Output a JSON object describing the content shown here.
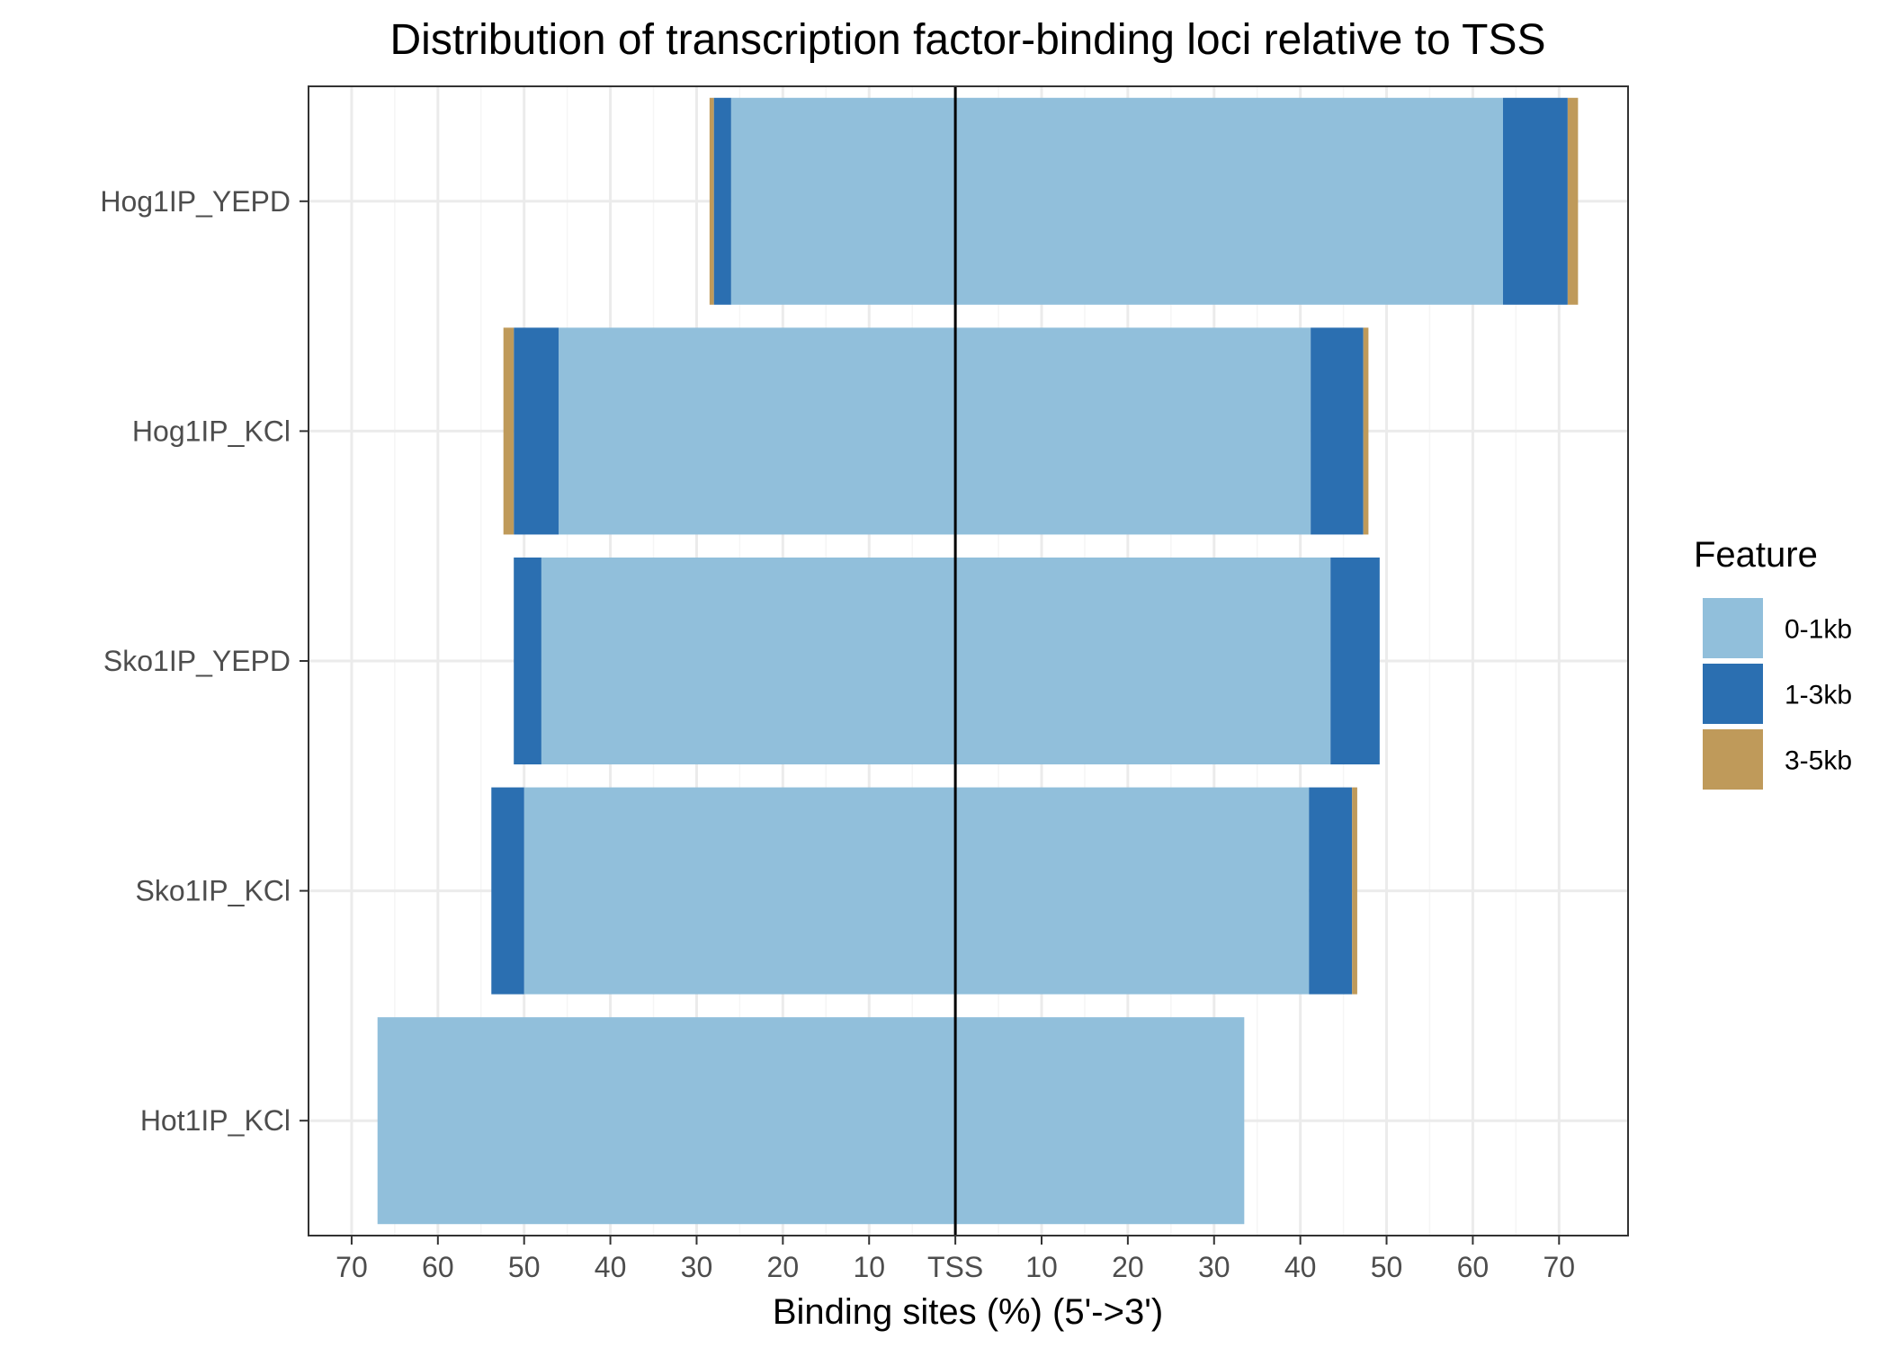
{
  "chart_data": {
    "type": "bar",
    "orientation": "horizontal",
    "stacked": true,
    "diverging": true,
    "title": "Distribution of transcription factor-binding loci relative to TSS",
    "xlabel": "Binding sites (%) (5'->3')",
    "ylabel": "",
    "xlim": [
      -75,
      78
    ],
    "x_ticks": [
      -70,
      -60,
      -50,
      -40,
      -30,
      -20,
      -10,
      0,
      10,
      20,
      30,
      40,
      50,
      60,
      70
    ],
    "x_tick_labels": [
      "70",
      "60",
      "50",
      "40",
      "30",
      "20",
      "10",
      "TSS",
      "10",
      "20",
      "30",
      "40",
      "50",
      "60",
      "70"
    ],
    "grid": true,
    "legend_position": "right",
    "categories": [
      "Hog1IP_YEPD",
      "Hog1IP_KCl",
      "Sko1IP_YEPD",
      "Sko1IP_KCl",
      "Hot1IP_KCl"
    ],
    "series": [
      {
        "name": "0-1kb",
        "color": "#91bfdb",
        "upstream": [
          26.0,
          46.0,
          48.0,
          50.0,
          67.0
        ],
        "downstream": [
          63.5,
          41.2,
          43.5,
          41.0,
          33.5
        ]
      },
      {
        "name": "1-3kb",
        "color": "#2b6fb1",
        "upstream": [
          2.0,
          5.2,
          3.2,
          3.8,
          0
        ],
        "downstream": [
          7.5,
          6.1,
          5.7,
          5.0,
          0
        ]
      },
      {
        "name": "3-5kb",
        "color": "#bf9a5a",
        "upstream": [
          0.5,
          1.2,
          0,
          0,
          0
        ],
        "downstream": [
          1.2,
          0.6,
          0,
          0.6,
          0
        ]
      }
    ],
    "legend_title": "Feature",
    "colors": {
      "panel_border": "#333333",
      "grid_major": "#ebebeb",
      "grid_minor": "#f5f5f5",
      "zero_line": "#000000"
    }
  }
}
